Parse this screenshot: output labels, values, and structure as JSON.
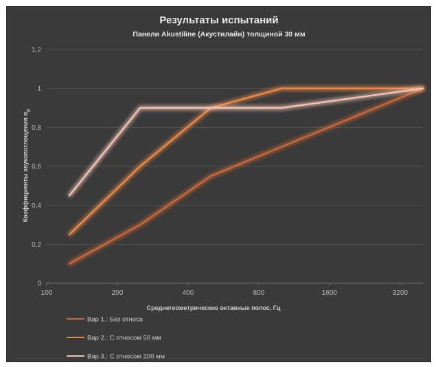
{
  "chart_data": {
    "type": "line",
    "title": "Результаты испытаний",
    "subtitle": "Панели Akustiline (Акустилайн) толщиной 30 мм",
    "xlabel": "Среднегеометрические октавные полос, Гц",
    "ylabel": "Коэффициенты звукопоглощения α",
    "ylabel_sub": "р",
    "x_scale": "log2",
    "x_ticks": [
      100,
      200,
      400,
      800,
      1600,
      3200
    ],
    "y_ticks": [
      "0",
      "0,2",
      "0,4",
      "0,6",
      "0,8",
      "1",
      "1,2"
    ],
    "y_tick_values": [
      0,
      0.2,
      0.4,
      0.6,
      0.8,
      1,
      1.2
    ],
    "xlim": [
      100,
      4000
    ],
    "ylim": [
      0,
      1.2
    ],
    "x": [
      125,
      250,
      500,
      1000,
      4000
    ],
    "series": [
      {
        "name": "Вар 1.: Без относа",
        "values": [
          0.1,
          0.3,
          0.55,
          0.7,
          1.0
        ],
        "color": "#c8693a"
      },
      {
        "name": "Вар 2.: С относом 50 мм",
        "values": [
          0.25,
          0.6,
          0.9,
          1.0,
          1.0
        ],
        "color": "#ec8a4a"
      },
      {
        "name": "Вар 3.: С относом 200 мм",
        "values": [
          0.45,
          0.9,
          0.9,
          0.9,
          1.0
        ],
        "color": "#f3c4b4"
      }
    ],
    "grid": "horizontal",
    "legend_position": "bottom-left",
    "background": "#3a3a3a",
    "gridline_color": "#505050"
  }
}
